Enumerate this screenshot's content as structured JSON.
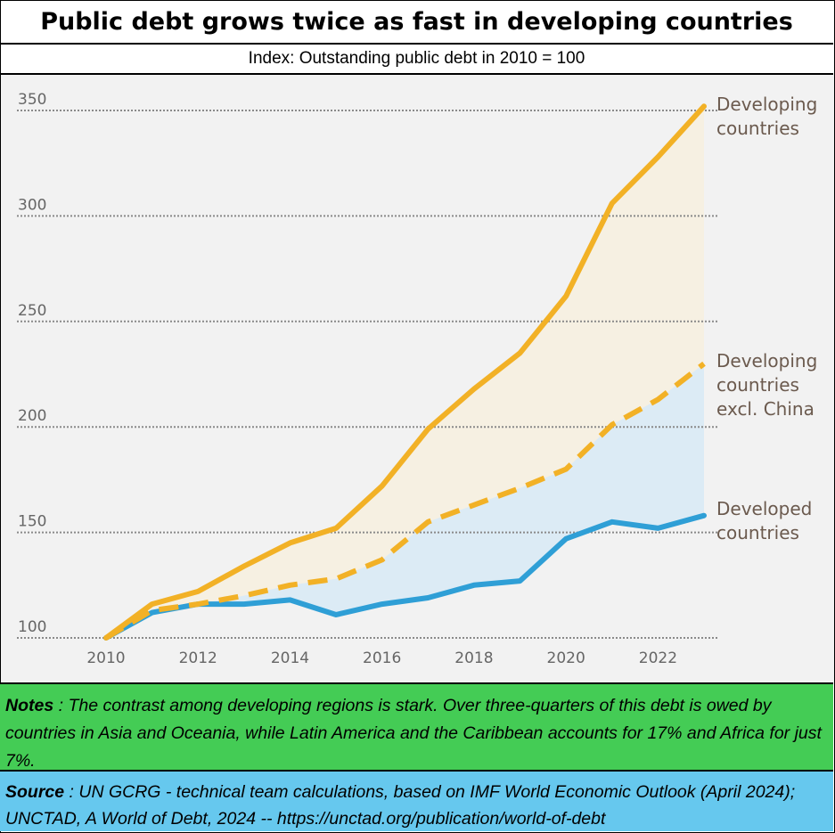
{
  "header": {
    "title": "Public debt grows twice as fast in developing countries",
    "subtitle": "Index: Outstanding public debt in 2010 = 100"
  },
  "notes": {
    "lead": "Notes",
    "text": " : The contrast among developing regions is stark. Over three-quarters of this debt is owed by countries in Asia and Oceania, while Latin America and the Caribbean accounts for 17% and Africa for just 7%."
  },
  "source": {
    "lead": "Source",
    "text": " : UN GCRG - technical team calculations, based on IMF World Economic Outlook (April 2024); UNCTAD, A World of Debt, 2024 -- https://unctad.org/publication/world-of-debt"
  },
  "colors": {
    "developing": "#f2b126",
    "developed": "#2f9fd6",
    "fill_upper": "#f6f0e2",
    "fill_lower": "#dcebf5",
    "grid": "#8a8a8a",
    "label": "#6b5a4e",
    "plot_bg": "#f2f2f2"
  },
  "chart_data": {
    "type": "line",
    "title": "Public debt grows twice as fast in developing countries",
    "subtitle": "Index: Outstanding public debt in 2010 = 100",
    "xlabel": "",
    "ylabel": "",
    "x": [
      2010,
      2011,
      2012,
      2013,
      2014,
      2015,
      2016,
      2017,
      2018,
      2019,
      2020,
      2021,
      2022,
      2023
    ],
    "xticks": [
      "2010",
      "2012",
      "2014",
      "2016",
      "2018",
      "2020",
      "2022"
    ],
    "yticks": [
      "100",
      "150",
      "200",
      "250",
      "300",
      "350"
    ],
    "xlim": [
      2010,
      2023
    ],
    "ylim": [
      100,
      350
    ],
    "grid": true,
    "series": [
      {
        "name": "Developing countries",
        "style": "solid",
        "label_lines": [
          "Developing",
          "countries"
        ],
        "values": [
          100,
          116,
          122,
          134,
          145,
          152,
          172,
          199,
          218,
          235,
          262,
          306,
          328,
          352
        ]
      },
      {
        "name": "Developing countries excl. China",
        "style": "dashed",
        "label_lines": [
          "Developing",
          "countries",
          "excl. China"
        ],
        "values": [
          100,
          113,
          116,
          120,
          125,
          128,
          137,
          155,
          163,
          171,
          180,
          201,
          213,
          230
        ]
      },
      {
        "name": "Developed countries",
        "style": "solid",
        "label_lines": [
          "Developed",
          "countries"
        ],
        "values": [
          100,
          112,
          116,
          116,
          118,
          111,
          116,
          119,
          125,
          127,
          147,
          155,
          152,
          158
        ]
      }
    ]
  }
}
